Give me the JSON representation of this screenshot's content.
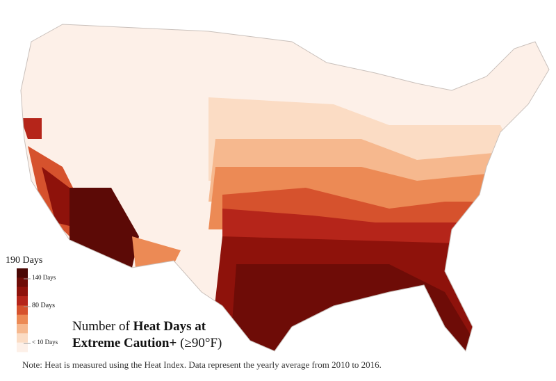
{
  "title": {
    "line1_plain": "Number of ",
    "line1_bold": "Heat Days at",
    "line2_bold": "Extreme Caution+",
    "line2_plain": " (≥90°F)"
  },
  "legend": {
    "top_label": "190 Days",
    "labels": [
      "140 Days",
      "80 Days",
      "< 10 Days"
    ],
    "colors": [
      "#4a0704",
      "#6e0c07",
      "#8e120b",
      "#b5251a",
      "#d6522d",
      "#ec8a55",
      "#f6b88e",
      "#fbdcc4",
      "#fdf0e8"
    ]
  },
  "note": "Note: Heat is measured using the Heat Index. Data represent the yearly average from 2010 to 2016."
}
